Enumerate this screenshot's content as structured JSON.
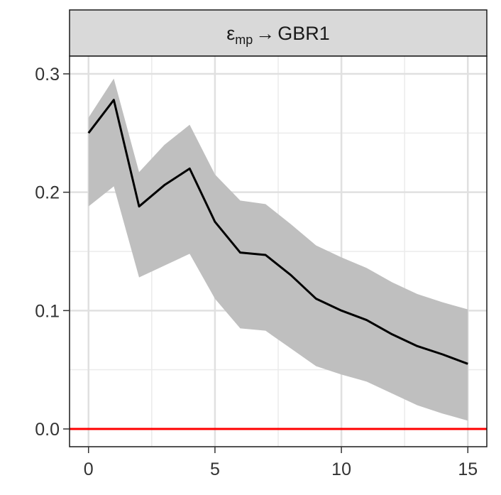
{
  "chart_data": {
    "type": "line",
    "panel_title": {
      "symbol": "ε",
      "subscript": "mp",
      "arrow": "→",
      "target": "GBR1"
    },
    "x": [
      0,
      1,
      2,
      3,
      4,
      5,
      6,
      7,
      8,
      9,
      10,
      11,
      12,
      13,
      14,
      15
    ],
    "series": [
      {
        "values": [
          0.25,
          0.278,
          0.188,
          0.206,
          0.22,
          0.175,
          0.149,
          0.147,
          0.13,
          0.11,
          0.1,
          0.092,
          0.08,
          0.07,
          0.063,
          0.055
        ],
        "lower": [
          0.188,
          0.205,
          0.128,
          0.138,
          0.148,
          0.11,
          0.085,
          0.083,
          0.068,
          0.053,
          0.046,
          0.04,
          0.03,
          0.02,
          0.013,
          0.007
        ],
        "upper": [
          0.263,
          0.296,
          0.217,
          0.24,
          0.257,
          0.215,
          0.193,
          0.19,
          0.173,
          0.155,
          0.145,
          0.136,
          0.124,
          0.114,
          0.107,
          0.101
        ]
      }
    ],
    "reference_line": {
      "y": 0.0,
      "color": "#ff0000"
    },
    "xlim": [
      -0.75,
      15.75
    ],
    "ylim": [
      -0.015,
      0.315
    ],
    "x_ticks": [
      "0",
      "5",
      "10",
      "15"
    ],
    "x_tick_values": [
      0,
      5,
      10,
      15
    ],
    "y_ticks": [
      "0.0",
      "0.1",
      "0.2",
      "0.3"
    ],
    "y_tick_values": [
      0.0,
      0.1,
      0.2,
      0.3
    ],
    "grid": true,
    "line_color": "#000000",
    "band_color": "#bfbfbf",
    "strip_fill": "#d9d9d9",
    "xlabel": "",
    "ylabel": ""
  }
}
